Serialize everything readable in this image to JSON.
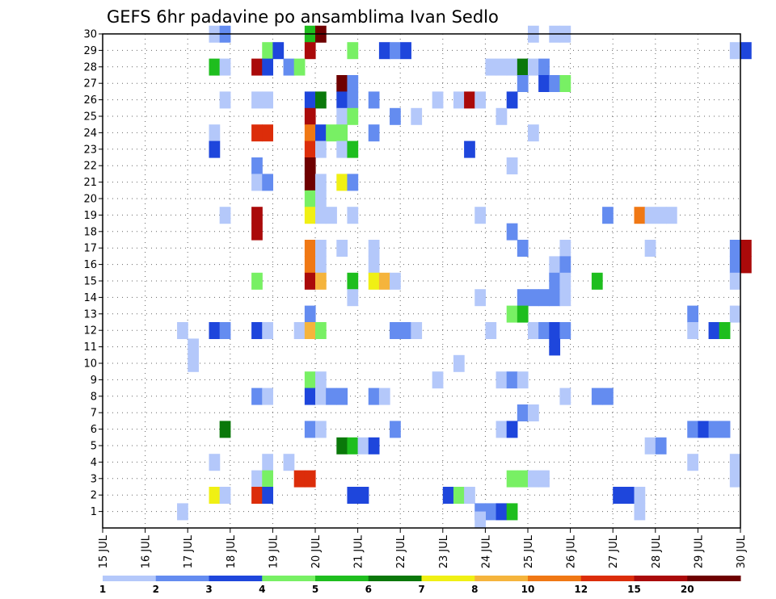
{
  "chart_data": {
    "type": "heatmap",
    "title": "GEFS 6hr padavine po ansamblima Ivan Sedlo",
    "xlabel": "",
    "ylabel": "",
    "x_axis": {
      "unit": "6h steps from 15 JUL 00z",
      "range": [
        0,
        60
      ],
      "tick_labels": [
        "15 JUL",
        "16 JUL",
        "17 JUL",
        "18 JUL",
        "19 JUL",
        "20 JUL",
        "21 JUL",
        "22 JUL",
        "23 JUL",
        "24 JUL",
        "25 JUL",
        "26 JUL",
        "27 JUL",
        "28 JUL",
        "29 JUL",
        "30 JUL"
      ]
    },
    "y_axis": {
      "range": [
        0,
        30
      ],
      "ticks": [
        1,
        2,
        3,
        4,
        5,
        6,
        7,
        8,
        9,
        10,
        11,
        12,
        13,
        14,
        15,
        16,
        17,
        18,
        19,
        20,
        21,
        22,
        23,
        24,
        25,
        26,
        27,
        28,
        29,
        30
      ]
    },
    "grid": true,
    "colorbar": {
      "placement": "bottom",
      "labels": [
        "1",
        "2",
        "3",
        "4",
        "5",
        "6",
        "7",
        "8",
        "10",
        "12",
        "15",
        "20"
      ],
      "colors": [
        "#b4c8fa",
        "#648cf0",
        "#1e46dc",
        "#78f064",
        "#1ebe1e",
        "#0a780a",
        "#f0f014",
        "#f5b43c",
        "#f07814",
        "#dc2d0a",
        "#aa0a0a",
        "#6e0000"
      ]
    },
    "cells": [
      [
        30,
        10.5,
        1
      ],
      [
        30,
        11.5,
        2
      ],
      [
        30,
        19.5,
        5
      ],
      [
        30,
        20.5,
        12
      ],
      [
        30,
        40.5,
        1
      ],
      [
        30,
        42.5,
        1
      ],
      [
        30,
        43.5,
        1
      ],
      [
        29,
        15.5,
        4
      ],
      [
        29,
        16.5,
        3
      ],
      [
        29,
        19.5,
        11
      ],
      [
        29,
        23.5,
        4
      ],
      [
        29,
        26.5,
        3
      ],
      [
        29,
        27.5,
        2
      ],
      [
        29,
        28.5,
        3
      ],
      [
        29,
        59.5,
        1
      ],
      [
        29,
        60.5,
        3
      ],
      [
        28,
        10.5,
        5
      ],
      [
        28,
        11.5,
        1
      ],
      [
        28,
        14.5,
        11
      ],
      [
        28,
        15.5,
        3
      ],
      [
        28,
        17.5,
        2
      ],
      [
        28,
        18.5,
        4
      ],
      [
        28,
        36.5,
        1
      ],
      [
        28,
        37.5,
        1
      ],
      [
        28,
        38.5,
        1
      ],
      [
        28,
        39.5,
        6
      ],
      [
        28,
        40.5,
        1
      ],
      [
        28,
        41.5,
        2
      ],
      [
        27,
        22.5,
        12
      ],
      [
        27,
        23.5,
        2
      ],
      [
        27,
        39.5,
        2
      ],
      [
        27,
        41.5,
        3
      ],
      [
        27,
        42.5,
        2
      ],
      [
        27,
        43.5,
        4
      ],
      [
        26,
        11.5,
        1
      ],
      [
        26,
        14.5,
        1
      ],
      [
        26,
        15.5,
        1
      ],
      [
        26,
        19.5,
        3
      ],
      [
        26,
        20.5,
        6
      ],
      [
        26,
        22.5,
        3
      ],
      [
        26,
        23.5,
        2
      ],
      [
        26,
        25.5,
        2
      ],
      [
        26,
        31.5,
        1
      ],
      [
        26,
        33.5,
        1
      ],
      [
        26,
        34.5,
        11
      ],
      [
        26,
        35.5,
        1
      ],
      [
        26,
        38.5,
        3
      ],
      [
        25,
        19.5,
        11
      ],
      [
        25,
        22.5,
        1
      ],
      [
        25,
        23.5,
        4
      ],
      [
        25,
        27.5,
        2
      ],
      [
        25,
        29.5,
        1
      ],
      [
        25,
        37.5,
        1
      ],
      [
        24,
        10.5,
        1
      ],
      [
        24,
        14.5,
        10
      ],
      [
        24,
        15.5,
        10
      ],
      [
        24,
        19.5,
        9
      ],
      [
        24,
        20.5,
        3
      ],
      [
        24,
        21.5,
        4
      ],
      [
        24,
        22.5,
        4
      ],
      [
        24,
        25.5,
        2
      ],
      [
        24,
        40.5,
        1
      ],
      [
        23,
        10.5,
        3
      ],
      [
        23,
        19.5,
        10
      ],
      [
        23,
        20.5,
        1
      ],
      [
        23,
        22.5,
        1
      ],
      [
        23,
        23.5,
        5
      ],
      [
        23,
        34.5,
        3
      ],
      [
        22,
        14.5,
        2
      ],
      [
        22,
        19.5,
        12
      ],
      [
        22,
        38.5,
        1
      ],
      [
        21,
        14.5,
        1
      ],
      [
        21,
        15.5,
        2
      ],
      [
        21,
        19.5,
        12
      ],
      [
        21,
        20.5,
        1
      ],
      [
        21,
        22.5,
        7
      ],
      [
        21,
        23.5,
        2
      ],
      [
        20,
        19.5,
        4
      ],
      [
        20,
        20.5,
        1
      ],
      [
        19,
        11.5,
        1
      ],
      [
        19,
        14.5,
        11
      ],
      [
        19,
        19.5,
        7
      ],
      [
        19,
        20.5,
        1
      ],
      [
        19,
        21.5,
        1
      ],
      [
        19,
        23.5,
        1
      ],
      [
        19,
        35.5,
        1
      ],
      [
        19,
        47.5,
        2
      ],
      [
        19,
        50.5,
        9
      ],
      [
        19,
        51.5,
        1
      ],
      [
        19,
        52.5,
        1
      ],
      [
        19,
        53.5,
        1
      ],
      [
        18,
        14.5,
        11
      ],
      [
        18,
        38.5,
        2
      ],
      [
        17,
        19.5,
        9
      ],
      [
        17,
        20.5,
        1
      ],
      [
        17,
        22.5,
        1
      ],
      [
        17,
        25.5,
        1
      ],
      [
        17,
        39.5,
        2
      ],
      [
        17,
        43.5,
        1
      ],
      [
        17,
        51.5,
        1
      ],
      [
        17,
        59.5,
        2
      ],
      [
        17,
        60.5,
        11
      ],
      [
        16,
        19.5,
        9
      ],
      [
        16,
        20.5,
        1
      ],
      [
        16,
        25.5,
        1
      ],
      [
        16,
        42.5,
        1
      ],
      [
        16,
        43.5,
        2
      ],
      [
        16,
        59.5,
        2
      ],
      [
        16,
        60.5,
        11
      ],
      [
        15,
        14.5,
        4
      ],
      [
        15,
        19.5,
        11
      ],
      [
        15,
        20.5,
        8
      ],
      [
        15,
        23.5,
        5
      ],
      [
        15,
        25.5,
        7
      ],
      [
        15,
        26.5,
        8
      ],
      [
        15,
        27.5,
        1
      ],
      [
        15,
        42.5,
        2
      ],
      [
        15,
        43.5,
        1
      ],
      [
        15,
        46.5,
        5
      ],
      [
        15,
        59.5,
        1
      ],
      [
        14,
        23.5,
        1
      ],
      [
        14,
        35.5,
        1
      ],
      [
        14,
        39.5,
        2
      ],
      [
        14,
        40.5,
        2
      ],
      [
        14,
        41.5,
        2
      ],
      [
        14,
        42.5,
        2
      ],
      [
        14,
        43.5,
        1
      ],
      [
        13,
        19.5,
        2
      ],
      [
        13,
        38.5,
        4
      ],
      [
        13,
        39.5,
        5
      ],
      [
        13,
        55.5,
        2
      ],
      [
        13,
        59.5,
        1
      ],
      [
        12,
        7.5,
        1
      ],
      [
        12,
        10.5,
        3
      ],
      [
        12,
        11.5,
        2
      ],
      [
        12,
        14.5,
        3
      ],
      [
        12,
        15.5,
        1
      ],
      [
        12,
        18.5,
        1
      ],
      [
        12,
        19.5,
        8
      ],
      [
        12,
        20.5,
        4
      ],
      [
        12,
        27.5,
        2
      ],
      [
        12,
        28.5,
        2
      ],
      [
        12,
        29.5,
        1
      ],
      [
        12,
        36.5,
        1
      ],
      [
        12,
        40.5,
        1
      ],
      [
        12,
        41.5,
        2
      ],
      [
        12,
        42.5,
        3
      ],
      [
        12,
        43.5,
        2
      ],
      [
        12,
        55.5,
        1
      ],
      [
        12,
        57.5,
        3
      ],
      [
        12,
        58.5,
        5
      ],
      [
        11,
        8.5,
        1
      ],
      [
        11,
        42.5,
        3
      ],
      [
        10,
        8.5,
        1
      ],
      [
        10,
        33.5,
        1
      ],
      [
        9,
        19.5,
        4
      ],
      [
        9,
        20.5,
        1
      ],
      [
        9,
        31.5,
        1
      ],
      [
        9,
        37.5,
        1
      ],
      [
        9,
        38.5,
        2
      ],
      [
        9,
        39.5,
        1
      ],
      [
        8,
        14.5,
        2
      ],
      [
        8,
        15.5,
        1
      ],
      [
        8,
        19.5,
        3
      ],
      [
        8,
        20.5,
        1
      ],
      [
        8,
        21.5,
        2
      ],
      [
        8,
        22.5,
        2
      ],
      [
        8,
        25.5,
        2
      ],
      [
        8,
        26.5,
        1
      ],
      [
        8,
        43.5,
        1
      ],
      [
        8,
        46.5,
        2
      ],
      [
        8,
        47.5,
        2
      ],
      [
        7,
        39.5,
        2
      ],
      [
        7,
        40.5,
        1
      ],
      [
        6,
        11.5,
        6
      ],
      [
        6,
        19.5,
        2
      ],
      [
        6,
        20.5,
        1
      ],
      [
        6,
        27.5,
        2
      ],
      [
        6,
        37.5,
        1
      ],
      [
        6,
        38.5,
        3
      ],
      [
        6,
        55.5,
        2
      ],
      [
        6,
        56.5,
        3
      ],
      [
        6,
        57.5,
        2
      ],
      [
        6,
        58.5,
        2
      ],
      [
        5,
        22.5,
        6
      ],
      [
        5,
        23.5,
        5
      ],
      [
        5,
        24.5,
        1
      ],
      [
        5,
        25.5,
        3
      ],
      [
        5,
        51.5,
        1
      ],
      [
        5,
        52.5,
        2
      ],
      [
        4,
        10.5,
        1
      ],
      [
        4,
        15.5,
        1
      ],
      [
        4,
        17.5,
        1
      ],
      [
        4,
        55.5,
        1
      ],
      [
        4,
        59.5,
        1
      ],
      [
        3,
        14.5,
        1
      ],
      [
        3,
        15.5,
        4
      ],
      [
        3,
        18.5,
        10
      ],
      [
        3,
        19.5,
        10
      ],
      [
        3,
        38.5,
        4
      ],
      [
        3,
        39.5,
        4
      ],
      [
        3,
        40.5,
        1
      ],
      [
        3,
        41.5,
        1
      ],
      [
        3,
        59.5,
        1
      ],
      [
        2,
        10.5,
        7
      ],
      [
        2,
        11.5,
        1
      ],
      [
        2,
        14.5,
        10
      ],
      [
        2,
        15.5,
        3
      ],
      [
        2,
        23.5,
        3
      ],
      [
        2,
        24.5,
        3
      ],
      [
        2,
        32.5,
        3
      ],
      [
        2,
        33.5,
        4
      ],
      [
        2,
        34.5,
        1
      ],
      [
        2,
        48.5,
        3
      ],
      [
        2,
        49.5,
        3
      ],
      [
        2,
        50.5,
        1
      ],
      [
        1,
        7.5,
        1
      ],
      [
        1,
        35.5,
        2
      ],
      [
        1,
        36.5,
        2
      ],
      [
        1,
        37.5,
        3
      ],
      [
        1,
        38.5,
        5
      ],
      [
        1,
        50.5,
        1
      ],
      [
        0.5,
        35.5,
        1
      ]
    ]
  }
}
